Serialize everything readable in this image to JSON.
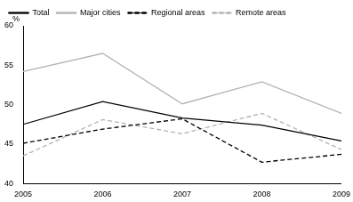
{
  "chart_data": {
    "type": "line",
    "ylabel": "%",
    "categories": [
      "2005",
      "2006",
      "2007",
      "2008",
      "2009"
    ],
    "series": [
      {
        "name": "Total",
        "color": "#000000",
        "line_style": "solid",
        "values": [
          47.5,
          50.4,
          48.3,
          47.4,
          45.4
        ]
      },
      {
        "name": "Major cities",
        "color": "#b3b3b3",
        "line_style": "solid",
        "values": [
          54.2,
          56.5,
          50.1,
          52.9,
          48.9
        ]
      },
      {
        "name": "Regional areas",
        "color": "#000000",
        "line_style": "dashed",
        "values": [
          45.1,
          46.9,
          48.2,
          42.7,
          43.7
        ]
      },
      {
        "name": "Remote areas",
        "color": "#b3b3b3",
        "line_style": "dashed",
        "values": [
          43.5,
          48.1,
          46.3,
          48.9,
          44.3
        ]
      }
    ],
    "ylim": [
      40,
      60
    ],
    "yticks": [
      40,
      45,
      50,
      55,
      60
    ],
    "grid": false,
    "legend": "upper left"
  }
}
